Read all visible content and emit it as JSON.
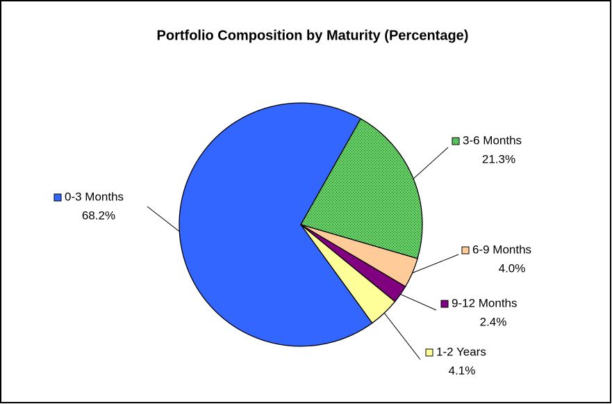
{
  "chart_data": {
    "type": "pie",
    "title": "Portfolio Composition by Maturity (Percentage)",
    "categories": [
      "0-3 Months",
      "3-6 Months",
      "6-9 Months",
      "9-12 Months",
      "1-2 Years"
    ],
    "values": [
      68.2,
      21.3,
      4.0,
      2.4,
      4.1
    ],
    "value_labels": [
      "68.2%",
      "21.3%",
      "4.0%",
      "2.4%",
      "4.1%"
    ],
    "colors": [
      "#3366ff",
      "#66cc66",
      "#ffcc99",
      "#800080",
      "#ffff99"
    ]
  }
}
